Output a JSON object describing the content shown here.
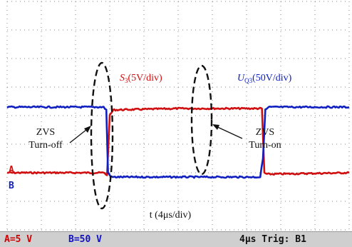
{
  "chart_data": {
    "type": "line",
    "x_label": "t (4μs/div)",
    "divisions": {
      "x": 10,
      "y": 8
    },
    "grid": true,
    "series": [
      {
        "name": "S3 (5V/div)",
        "label_main": "S",
        "label_sub": "3",
        "label_rest": "(5V/div)",
        "channel": "A",
        "color": "#d01010",
        "x": [
          0,
          2.85,
          2.92,
          3.0,
          3.1,
          5.0,
          7.0,
          7.45,
          7.52,
          7.6,
          10
        ],
        "y": [
          0.0,
          0.0,
          -0.1,
          2.0,
          2.2,
          2.25,
          2.25,
          2.25,
          0.0,
          -0.05,
          0.0
        ]
      },
      {
        "name": "UQ3 (50V/div)",
        "label_main": "U",
        "label_sub": "Q3",
        "label_rest": "(50V/div)",
        "channel": "B",
        "color": "#1020c0",
        "x": [
          0,
          2.82,
          2.9,
          2.95,
          3.05,
          5.0,
          7.4,
          7.48,
          7.55,
          7.65,
          10
        ],
        "y": [
          2.3,
          2.3,
          2.2,
          0.0,
          -0.15,
          -0.15,
          -0.15,
          0.5,
          2.2,
          2.3,
          2.3
        ]
      }
    ],
    "annotations": [
      {
        "text_1": "ZVS",
        "text_2": "Turn-off"
      },
      {
        "text_1": "ZVS",
        "text_2": "Turn-on"
      }
    ],
    "channel_markers": [
      "A",
      "B"
    ]
  },
  "status": {
    "ch_a": "A=5 V",
    "ch_b": "B=50 V",
    "timebase": "4μs Trig: B1"
  }
}
